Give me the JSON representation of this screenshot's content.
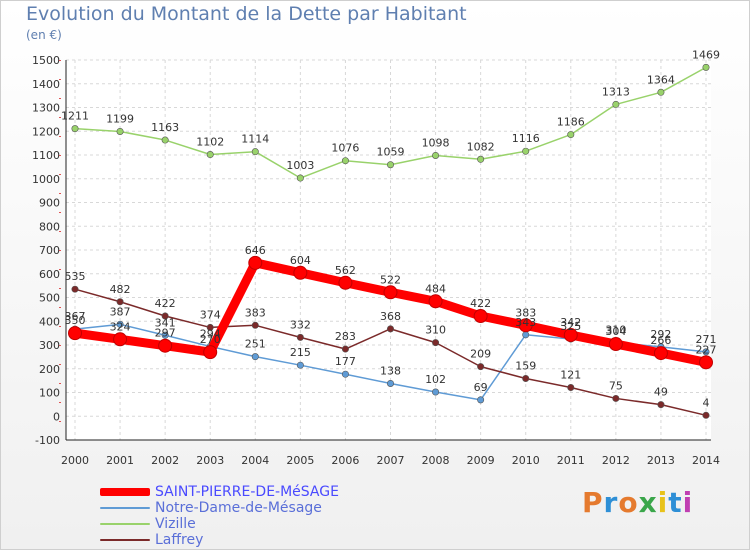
{
  "chart_data": {
    "type": "line",
    "title": "Evolution du Montant de la Dette par Habitant",
    "subtitle": "(en €)",
    "x": [
      2000,
      2001,
      2002,
      2003,
      2004,
      2005,
      2006,
      2007,
      2008,
      2009,
      2010,
      2011,
      2012,
      2013,
      2014
    ],
    "ylim": [
      -100,
      1500
    ],
    "yticks": [
      -100,
      0,
      100,
      200,
      300,
      400,
      500,
      600,
      700,
      800,
      900,
      1000,
      1100,
      1200,
      1300,
      1400,
      1500
    ],
    "grid": true,
    "legend_position": "bottom-left",
    "series": [
      {
        "name": "SAINT-PIERRE-DE-MéSAGE",
        "color": "#ff0000",
        "values": [
          350,
          324,
          297,
          270,
          646,
          604,
          562,
          522,
          484,
          422,
          383,
          342,
          304,
          266,
          227
        ]
      },
      {
        "name": "Notre-Dame-de-Mésage",
        "color": "#5f9bd5",
        "values": [
          367,
          387,
          341,
          294,
          251,
          215,
          177,
          138,
          102,
          69,
          343,
          325,
          310,
          292,
          271
        ]
      },
      {
        "name": "Vizille",
        "color": "#99d26b",
        "values": [
          1211,
          1199,
          1163,
          1102,
          1114,
          1003,
          1076,
          1059,
          1098,
          1082,
          1116,
          1186,
          1313,
          1364,
          1469
        ]
      },
      {
        "name": "Laffrey",
        "color": "#7b2a2a",
        "values": [
          535,
          482,
          422,
          374,
          383,
          332,
          283,
          368,
          310,
          209,
          159,
          121,
          75,
          49,
          4
        ]
      }
    ]
  },
  "logo_text": "Proxiti",
  "logo_colors": [
    "#e57a2e",
    "#2e8fd6",
    "#e57a2e",
    "#3aa64a",
    "#e8c21a",
    "#2e8fd6",
    "#c03fb2"
  ]
}
